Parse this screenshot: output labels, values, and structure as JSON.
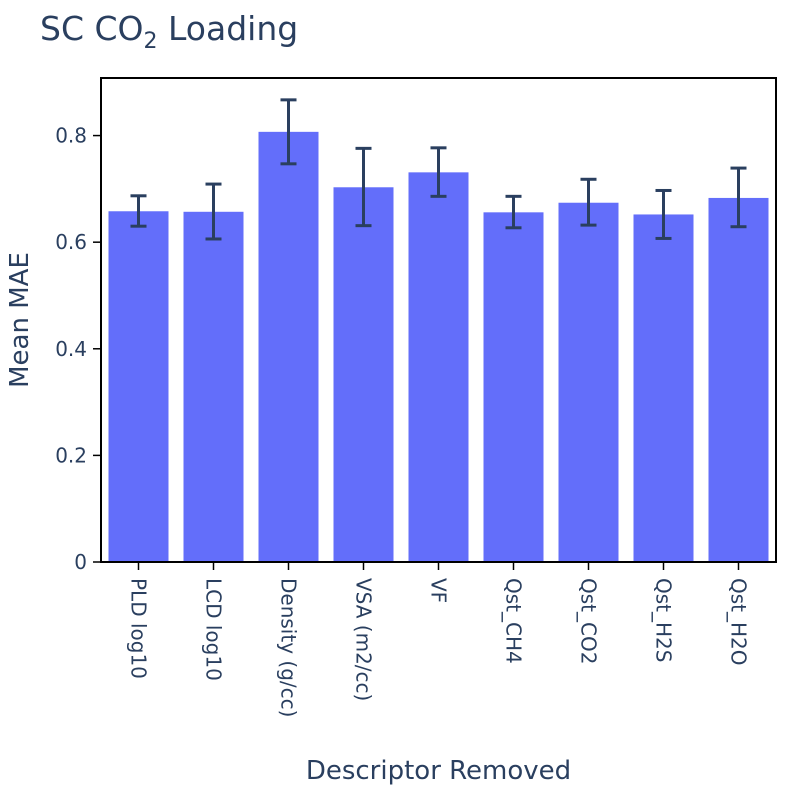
{
  "chart_data": {
    "type": "bar",
    "title_main": "SC CO",
    "title_sub": "2",
    "title_rest": " Loading",
    "xlabel": "Descriptor Removed",
    "ylabel": "Mean MAE",
    "categories": [
      "PLD log10",
      "LCD log10",
      "Density (g/cc)",
      "VSA (m2/cc)",
      "VF",
      "Qst_CH4",
      "Qst_CO2",
      "Qst_H2S",
      "Qst_H2O"
    ],
    "values": [
      0.658,
      0.657,
      0.807,
      0.703,
      0.731,
      0.656,
      0.674,
      0.652,
      0.683
    ],
    "error_upper": [
      0.687,
      0.709,
      0.867,
      0.776,
      0.777,
      0.686,
      0.718,
      0.697,
      0.739
    ],
    "error_lower": [
      0.63,
      0.606,
      0.747,
      0.631,
      0.686,
      0.627,
      0.632,
      0.607,
      0.629
    ],
    "yticks": [
      0,
      0.2,
      0.4,
      0.6,
      0.8
    ],
    "ytick_labels": [
      "0",
      "0.2",
      "0.4",
      "0.6",
      "0.8"
    ],
    "ylim": [
      0,
      0.908
    ],
    "bar_color": "#636efa",
    "error_color": "#2a3f5f",
    "grid": false,
    "legend": "none"
  }
}
